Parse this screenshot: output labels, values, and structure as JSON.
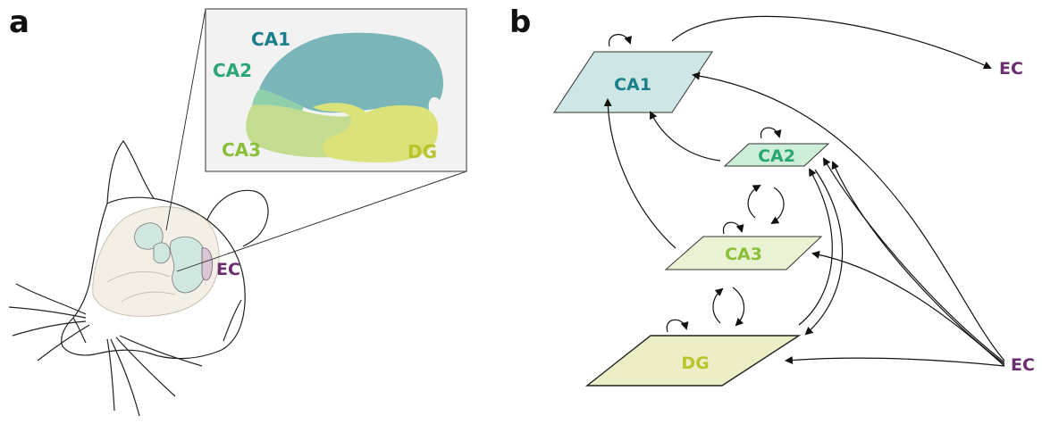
{
  "colors": {
    "ca1": "#1a7f8a",
    "ca2": "#2aa673",
    "ca3": "#8bbf3a",
    "dg": "#b9c42b",
    "ec": "#6b2e6f"
  },
  "panel_a": {
    "letter": "a",
    "inset_labels": {
      "ca1": "CA1",
      "ca2": "CA2",
      "ca3": "CA3",
      "dg": "DG"
    },
    "ec_label": "EC"
  },
  "panel_b": {
    "letter": "b",
    "layers": {
      "ca1": "CA1",
      "ca2": "CA2",
      "ca3": "CA3",
      "dg": "DG"
    },
    "ec_output_label": "EC",
    "ec_input_label": "EC"
  }
}
